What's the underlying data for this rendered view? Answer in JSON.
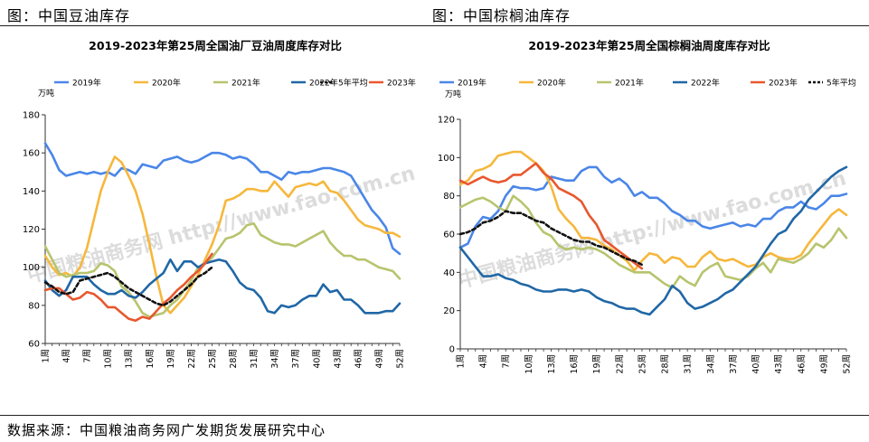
{
  "figure_titles": [
    "图：中国豆油库存",
    "图：中国棕榈油库存"
  ],
  "source": "数据来源：中国粮油商务网广发期货发展研究中心",
  "watermark": "中国粮油商务网 http://www.fao.com.cn",
  "chart_data": [
    {
      "type": "line",
      "title": "2019-2023年第25周全国油厂豆油周度库存对比",
      "ylabel": "万吨",
      "xlabel": "",
      "ylim": [
        60,
        180
      ],
      "yticks": [
        60,
        80,
        100,
        120,
        140,
        160,
        180
      ],
      "xlim": [
        1,
        52
      ],
      "xticks": [
        "1周",
        "4周",
        "7周",
        "10周",
        "13周",
        "16周",
        "19周",
        "22周",
        "25周",
        "28周",
        "31周",
        "34周",
        "37周",
        "40周",
        "43周",
        "46周",
        "49周",
        "52周"
      ],
      "legend_position": "top",
      "grid": false,
      "series": [
        {
          "name": "2019年",
          "color": "#4a86e8",
          "style": "solid",
          "x_start": 1,
          "values": [
            165,
            159,
            151,
            148,
            149,
            150,
            149,
            150,
            149,
            150,
            148,
            152,
            151,
            149,
            154,
            153,
            152,
            156,
            157,
            158,
            156,
            155,
            156,
            158,
            160,
            160,
            159,
            157,
            158,
            157,
            154,
            150,
            150,
            148,
            146,
            150,
            149,
            150,
            150,
            151,
            152,
            152,
            151,
            150,
            148,
            142,
            136,
            130,
            126,
            121,
            110,
            107
          ]
        },
        {
          "name": "2020年",
          "color": "#f6b73c",
          "style": "solid",
          "x_start": 1,
          "values": [
            106,
            100,
            96,
            97,
            95,
            100,
            110,
            125,
            140,
            150,
            158,
            155,
            148,
            140,
            128,
            112,
            95,
            80,
            76,
            80,
            84,
            90,
            96,
            104,
            112,
            122,
            135,
            136,
            138,
            141,
            141,
            140,
            140,
            145,
            141,
            137,
            142,
            143,
            144,
            143,
            145,
            140,
            139,
            135,
            130,
            125,
            122,
            121,
            120,
            118,
            118,
            116
          ]
        },
        {
          "name": "2021年",
          "color": "#b8c46d",
          "style": "solid",
          "x_start": 1,
          "values": [
            111,
            104,
            97,
            95,
            96,
            97,
            97,
            98,
            102,
            101,
            98,
            90,
            87,
            82,
            76,
            74,
            75,
            76,
            80,
            83,
            88,
            93,
            100,
            102,
            105,
            110,
            115,
            116,
            118,
            122,
            123,
            117,
            115,
            113,
            112,
            112,
            111,
            113,
            115,
            117,
            119,
            113,
            109,
            106,
            106,
            104,
            104,
            102,
            100,
            99,
            98,
            94
          ]
        },
        {
          "name": "2022年",
          "color": "#2067a6",
          "style": "solid",
          "x_start": 1,
          "values": [
            93,
            88,
            85,
            88,
            95,
            95,
            95,
            91,
            88,
            86,
            86,
            88,
            85,
            84,
            87,
            91,
            94,
            97,
            104,
            98,
            103,
            103,
            100,
            102,
            103,
            104,
            103,
            98,
            92,
            89,
            88,
            84,
            77,
            76,
            80,
            79,
            80,
            83,
            85,
            85,
            91,
            87,
            88,
            83,
            83,
            80,
            76,
            76,
            76,
            77,
            77,
            81
          ]
        },
        {
          "name": "2023年",
          "color": "#e8572e",
          "style": "solid",
          "x_start": 1,
          "values": [
            88,
            89,
            89,
            86,
            83,
            84,
            87,
            86,
            83,
            79,
            79,
            76,
            73,
            72,
            74,
            73,
            77,
            81,
            84,
            88,
            91,
            95,
            98,
            102,
            107
          ]
        },
        {
          "name": "5年平均",
          "color": "#111111",
          "style": "dashed",
          "x_start": 1,
          "values": [
            92,
            90,
            87,
            86,
            87,
            93,
            94,
            95,
            96,
            97,
            95,
            92,
            89,
            87,
            85,
            83,
            81,
            80,
            82,
            85,
            88,
            91,
            95,
            97,
            100
          ]
        }
      ]
    },
    {
      "type": "line",
      "title": "2019-2023年第25周全国棕榈油周度库存对比",
      "ylabel": "万吨",
      "xlabel": "",
      "ylim": [
        0,
        120
      ],
      "yticks": [
        0,
        20,
        40,
        60,
        80,
        100,
        120
      ],
      "xlim": [
        1,
        52
      ],
      "xticks": [
        "1周",
        "4周",
        "7周",
        "10周",
        "13周",
        "16周",
        "19周",
        "22周",
        "25周",
        "28周",
        "31周",
        "34周",
        "37周",
        "40周",
        "43周",
        "46周",
        "49周",
        "52周"
      ],
      "legend_position": "top",
      "grid": false,
      "series": [
        {
          "name": "2019年",
          "color": "#4a86e8",
          "style": "solid",
          "x_start": 1,
          "values": [
            53,
            55,
            64,
            69,
            68,
            72,
            80,
            85,
            84,
            84,
            83,
            84,
            90,
            89,
            88,
            88,
            93,
            95,
            95,
            90,
            87,
            89,
            86,
            80,
            82,
            79,
            79,
            76,
            72,
            70,
            67,
            67,
            64,
            63,
            64,
            65,
            66,
            64,
            65,
            64,
            68,
            68,
            72,
            74,
            74,
            77,
            74,
            73,
            76,
            80,
            80,
            81
          ]
        },
        {
          "name": "2020年",
          "color": "#f6b73c",
          "style": "solid",
          "x_start": 1,
          "values": [
            86,
            88,
            93,
            94,
            96,
            101,
            102,
            103,
            103,
            100,
            97,
            93,
            85,
            73,
            68,
            64,
            58,
            58,
            57,
            54,
            52,
            49,
            46,
            41,
            46,
            50,
            49,
            45,
            48,
            47,
            43,
            43,
            48,
            51,
            47,
            46,
            47,
            45,
            43,
            44,
            48,
            50,
            48,
            47,
            47,
            49,
            55,
            60,
            65,
            70,
            73,
            70
          ]
        },
        {
          "name": "2021年",
          "color": "#b8c46d",
          "style": "solid",
          "x_start": 1,
          "values": [
            74,
            76,
            78,
            79,
            77,
            74,
            72,
            80,
            77,
            73,
            66,
            61,
            59,
            54,
            52,
            53,
            52,
            53,
            52,
            50,
            47,
            44,
            42,
            40,
            40,
            40,
            37,
            34,
            32,
            38,
            35,
            33,
            40,
            43,
            45,
            38,
            37,
            36,
            38,
            42,
            45,
            40,
            47,
            46,
            45,
            47,
            50,
            55,
            53,
            57,
            63,
            58
          ]
        },
        {
          "name": "2022年",
          "color": "#2067a6",
          "style": "solid",
          "x_start": 1,
          "values": [
            53,
            48,
            43,
            38,
            38,
            39,
            37,
            36,
            34,
            33,
            31,
            30,
            30,
            31,
            31,
            30,
            31,
            30,
            27,
            25,
            24,
            22,
            21,
            21,
            19,
            18,
            22,
            26,
            33,
            30,
            24,
            21,
            22,
            24,
            26,
            29,
            31,
            35,
            39,
            43,
            49,
            55,
            60,
            62,
            68,
            72,
            78,
            82,
            86,
            90,
            93,
            95
          ]
        },
        {
          "name": "2023年",
          "color": "#e8572e",
          "style": "solid",
          "x_start": 1,
          "values": [
            88,
            86,
            88,
            90,
            88,
            87,
            88,
            91,
            91,
            94,
            97,
            92,
            89,
            84,
            82,
            80,
            77,
            70,
            65,
            57,
            54,
            51,
            48,
            45,
            42
          ]
        },
        {
          "name": "5年平均",
          "color": "#111111",
          "style": "dashed",
          "x_start": 1,
          "values": [
            60,
            61,
            63,
            66,
            67,
            69,
            72,
            71,
            71,
            69,
            67,
            66,
            63,
            61,
            59,
            57,
            56,
            56,
            54,
            53,
            51,
            49,
            47,
            46,
            44
          ]
        }
      ]
    }
  ]
}
